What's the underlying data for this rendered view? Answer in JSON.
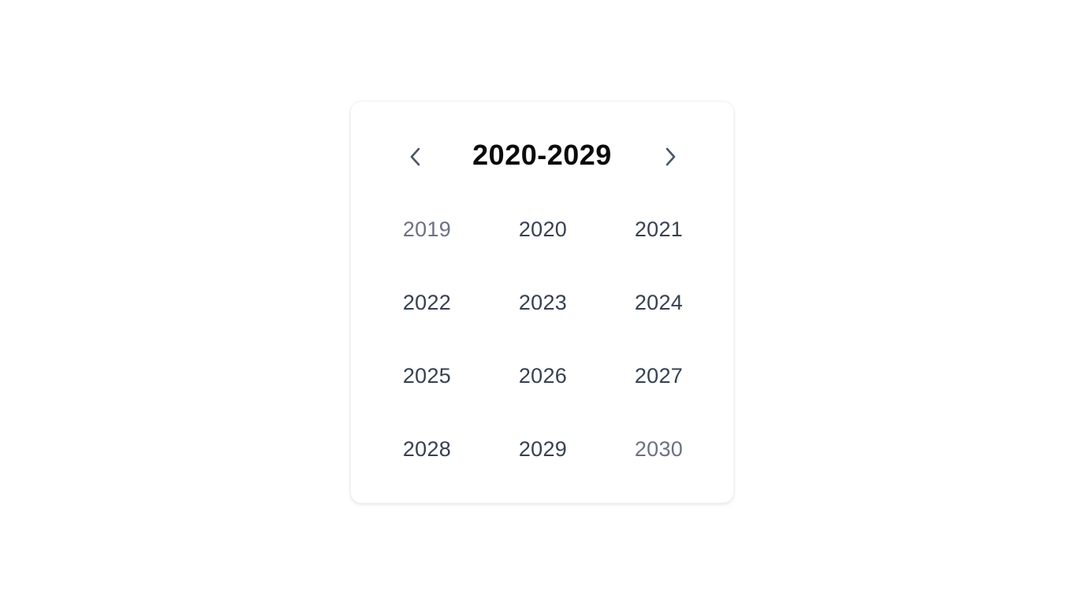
{
  "picker": {
    "title": "2020-2029",
    "prev_icon": "chevron-left-icon",
    "next_icon": "chevron-right-icon",
    "years": [
      {
        "label": "2019",
        "muted": true
      },
      {
        "label": "2020",
        "muted": false
      },
      {
        "label": "2021",
        "muted": false
      },
      {
        "label": "2022",
        "muted": false
      },
      {
        "label": "2023",
        "muted": false
      },
      {
        "label": "2024",
        "muted": false
      },
      {
        "label": "2025",
        "muted": false
      },
      {
        "label": "2026",
        "muted": false
      },
      {
        "label": "2027",
        "muted": false
      },
      {
        "label": "2028",
        "muted": false
      },
      {
        "label": "2029",
        "muted": false
      },
      {
        "label": "2030",
        "muted": true
      }
    ]
  },
  "colors": {
    "title": "#0b0b0b",
    "year": "#374151",
    "year_muted": "#6b7280",
    "icon": "#4b5563"
  }
}
